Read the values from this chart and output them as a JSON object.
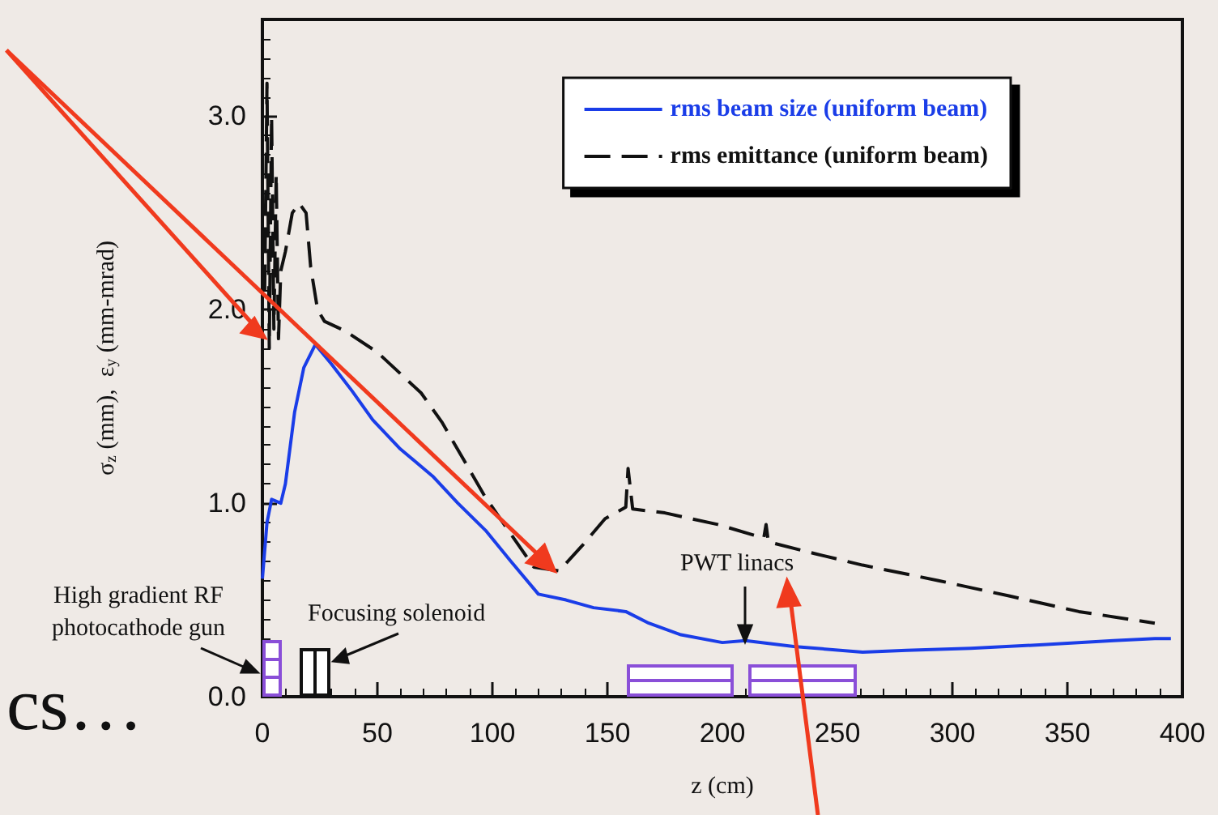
{
  "chart_data": {
    "type": "line",
    "xlabel": "z (cm)",
    "ylabel": "σ$_{z}$ (mm),  ε$_{y}$ (mm-mrad)",
    "xlim": [
      0,
      400
    ],
    "xticks": [
      0,
      50,
      100,
      150,
      200,
      250,
      300,
      350,
      400
    ],
    "ylim": [
      0,
      3.5
    ],
    "yticks": [
      {
        "value": 0,
        "label": "0.0"
      },
      {
        "value": 1,
        "label": "1.0"
      },
      {
        "value": 2,
        "label": "2.0"
      },
      {
        "value": 3,
        "label": "3.0"
      }
    ],
    "grid": false,
    "legend": "top right",
    "marker": "none",
    "series": [
      {
        "name": "rms beam size (uniform beam)",
        "color": "#1a3de8",
        "line_style": "solid",
        "x": [
          0,
          2,
          4,
          8,
          10,
          14,
          18,
          23,
          30,
          39,
          48,
          60,
          74,
          85,
          97,
          108,
          120,
          132,
          144,
          158,
          168,
          182,
          200,
          210,
          231,
          261,
          280,
          308,
          341,
          370,
          388,
          395
        ],
        "values": [
          0.61,
          0.9,
          1.02,
          1.0,
          1.1,
          1.47,
          1.7,
          1.82,
          1.72,
          1.58,
          1.43,
          1.28,
          1.14,
          1.0,
          0.86,
          0.7,
          0.53,
          0.5,
          0.46,
          0.44,
          0.38,
          0.32,
          0.28,
          0.29,
          0.26,
          0.23,
          0.24,
          0.25,
          0.27,
          0.29,
          0.3,
          0.3
        ]
      },
      {
        "name": "rms emittance (uniform beam)",
        "color": "#111111",
        "line_style": "dashed",
        "x": [
          1,
          2,
          3,
          4,
          5,
          6,
          7,
          8,
          10,
          13,
          16,
          19,
          21,
          24,
          27,
          36,
          50,
          69,
          78,
          97,
          118,
          129,
          139,
          149,
          158,
          159,
          161,
          175,
          198,
          218,
          219,
          220,
          240,
          261,
          294,
          325,
          355,
          388
        ],
        "values": [
          2.1,
          3.17,
          1.8,
          3.0,
          1.9,
          2.7,
          1.85,
          2.2,
          2.3,
          2.5,
          2.55,
          2.5,
          2.22,
          2.0,
          1.94,
          1.89,
          1.78,
          1.57,
          1.42,
          1.03,
          0.67,
          0.65,
          0.78,
          0.92,
          0.98,
          1.18,
          0.97,
          0.95,
          0.89,
          0.82,
          0.89,
          0.8,
          0.74,
          0.68,
          0.6,
          0.52,
          0.44,
          0.38
        ]
      }
    ],
    "annotations": [
      "High gradient RF\nphotocathode gun",
      "Focusing solenoid",
      "PWT linacs",
      "cs…"
    ]
  }
}
